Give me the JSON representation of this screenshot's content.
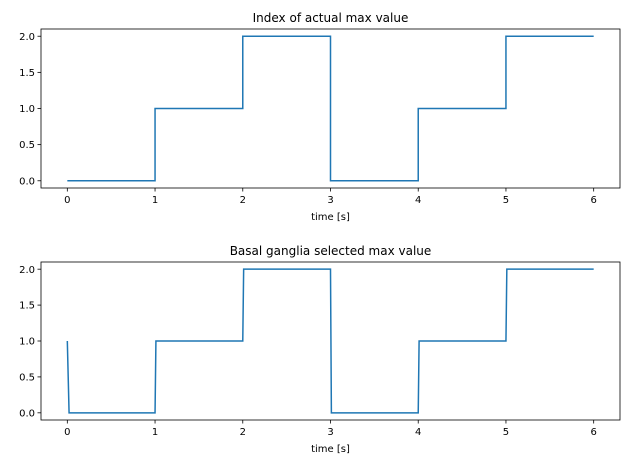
{
  "chart_data": [
    {
      "type": "line",
      "title": "Index of actual max value",
      "xlabel": "time [s]",
      "ylabel": "",
      "xlim": [
        -0.3,
        6.3
      ],
      "ylim": [
        -0.1,
        2.1
      ],
      "xticks": [
        0,
        1,
        2,
        3,
        4,
        5,
        6
      ],
      "xtick_labels": [
        "0",
        "1",
        "2",
        "3",
        "4",
        "5",
        "6"
      ],
      "yticks": [
        0.0,
        0.5,
        1.0,
        1.5,
        2.0
      ],
      "ytick_labels": [
        "0.0",
        "0.5",
        "1.0",
        "1.5",
        "2.0"
      ],
      "grid": false,
      "series": [
        {
          "color": "#1f77b4",
          "x": [
            0,
            1,
            1,
            2,
            2,
            3,
            3,
            4,
            4,
            5,
            5,
            6
          ],
          "y": [
            0,
            0,
            1,
            1,
            2,
            2,
            0,
            0,
            1,
            1,
            2,
            2
          ]
        }
      ]
    },
    {
      "type": "line",
      "title": "Basal ganglia selected max value",
      "xlabel": "time [s]",
      "ylabel": "",
      "xlim": [
        -0.3,
        6.3
      ],
      "ylim": [
        -0.1,
        2.1
      ],
      "xticks": [
        0,
        1,
        2,
        3,
        4,
        5,
        6
      ],
      "xtick_labels": [
        "0",
        "1",
        "2",
        "3",
        "4",
        "5",
        "6"
      ],
      "yticks": [
        0.0,
        0.5,
        1.0,
        1.5,
        2.0
      ],
      "ytick_labels": [
        "0.0",
        "0.5",
        "1.0",
        "1.5",
        "2.0"
      ],
      "grid": false,
      "series": [
        {
          "color": "#1f77b4",
          "x": [
            0,
            0.01,
            0.02,
            1,
            1.01,
            2,
            2.01,
            3,
            3.01,
            4,
            4.01,
            5,
            5.01,
            6
          ],
          "y": [
            1,
            0.5,
            0,
            0,
            1,
            1,
            2,
            2,
            0,
            0,
            1,
            1,
            2,
            2
          ]
        }
      ]
    }
  ]
}
